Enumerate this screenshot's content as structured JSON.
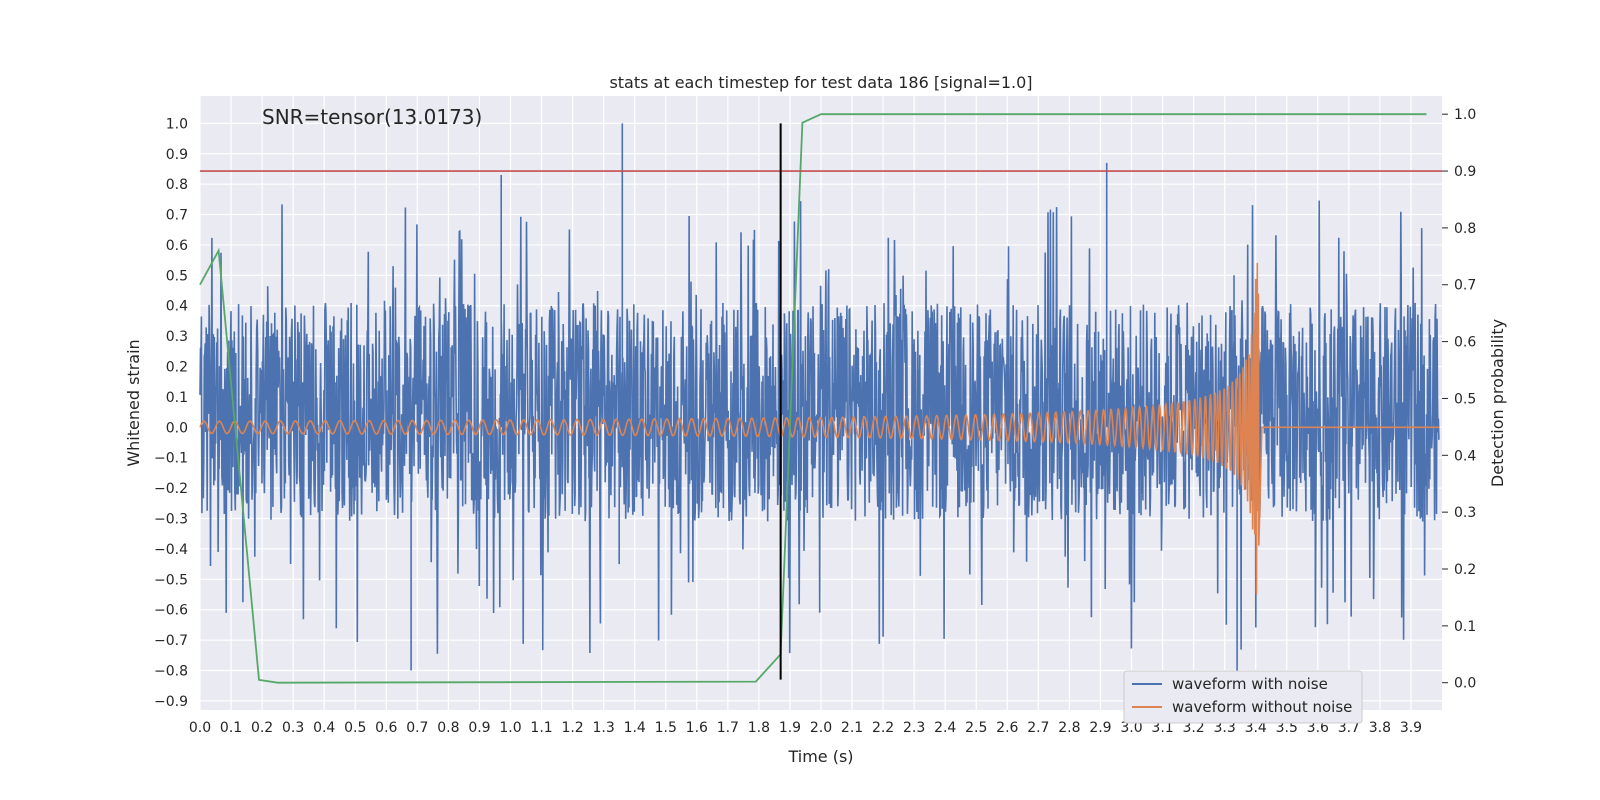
{
  "chart_data": {
    "type": "line",
    "title": "stats at each timestep for test data 186 [signal=1.0]",
    "xlabel": "Time (s)",
    "ylabel_left": "Whitened strain",
    "ylabel_right": "Detection probability",
    "annotation": "SNR=tensor(13.0173)",
    "xlim": [
      0.0,
      4.0
    ],
    "ylim_left": [
      -0.93,
      1.09
    ],
    "ylim_right": [
      -0.048,
      1.032
    ],
    "x_ticks": [
      "0.0",
      "0.1",
      "0.2",
      "0.3",
      "0.4",
      "0.5",
      "0.6",
      "0.7",
      "0.8",
      "0.9",
      "1.0",
      "1.1",
      "1.2",
      "1.3",
      "1.4",
      "1.5",
      "1.6",
      "1.7",
      "1.8",
      "1.9",
      "2.0",
      "2.1",
      "2.2",
      "2.3",
      "2.4",
      "2.5",
      "2.6",
      "2.7",
      "2.8",
      "2.9",
      "3.0",
      "3.1",
      "3.2",
      "3.3",
      "3.4",
      "3.5",
      "3.6",
      "3.7",
      "3.8",
      "3.9"
    ],
    "y_ticks_left": [
      "−0.9",
      "−0.8",
      "−0.7",
      "−0.6",
      "−0.5",
      "−0.4",
      "−0.3",
      "−0.2",
      "−0.1",
      "0.0",
      "0.1",
      "0.2",
      "0.3",
      "0.4",
      "0.5",
      "0.6",
      "0.7",
      "0.8",
      "0.9",
      "1.0"
    ],
    "y_ticks_right": [
      "0.0",
      "0.1",
      "0.2",
      "0.3",
      "0.4",
      "0.5",
      "0.6",
      "0.7",
      "0.8",
      "0.9",
      "1.0"
    ],
    "grid": true,
    "legend_position": "lower-right",
    "series": [
      {
        "name": "waveform with noise",
        "color": "#4c72b0",
        "axis": "left",
        "description_values": {
          "baseline_band": [
            -0.35,
            0.45
          ],
          "max_spike": 1.0,
          "min_spike": -0.82
        }
      },
      {
        "name": "waveform without noise",
        "color": "#dd8452",
        "axis": "left",
        "chirp_end_time": 3.41,
        "chirp_peak": 0.55,
        "chirp_trough": -0.39,
        "start_amplitude": 0.02
      },
      {
        "name": "",
        "color": "#55a868",
        "axis": "right",
        "x": [
          0.0,
          0.06,
          0.19,
          0.25,
          1.79,
          1.87,
          1.94,
          2.0,
          3.95
        ],
        "y": [
          0.7,
          0.76,
          0.005,
          0.0,
          0.002,
          0.05,
          0.985,
          1.0,
          1.0
        ]
      }
    ],
    "hline_right": {
      "value": 0.9,
      "color": "#c44e52"
    },
    "vline": {
      "x": 1.87,
      "y_range": [
        -0.83,
        1.0
      ],
      "color": "#000000"
    },
    "legend": [
      "waveform with noise",
      "waveform without noise"
    ]
  }
}
